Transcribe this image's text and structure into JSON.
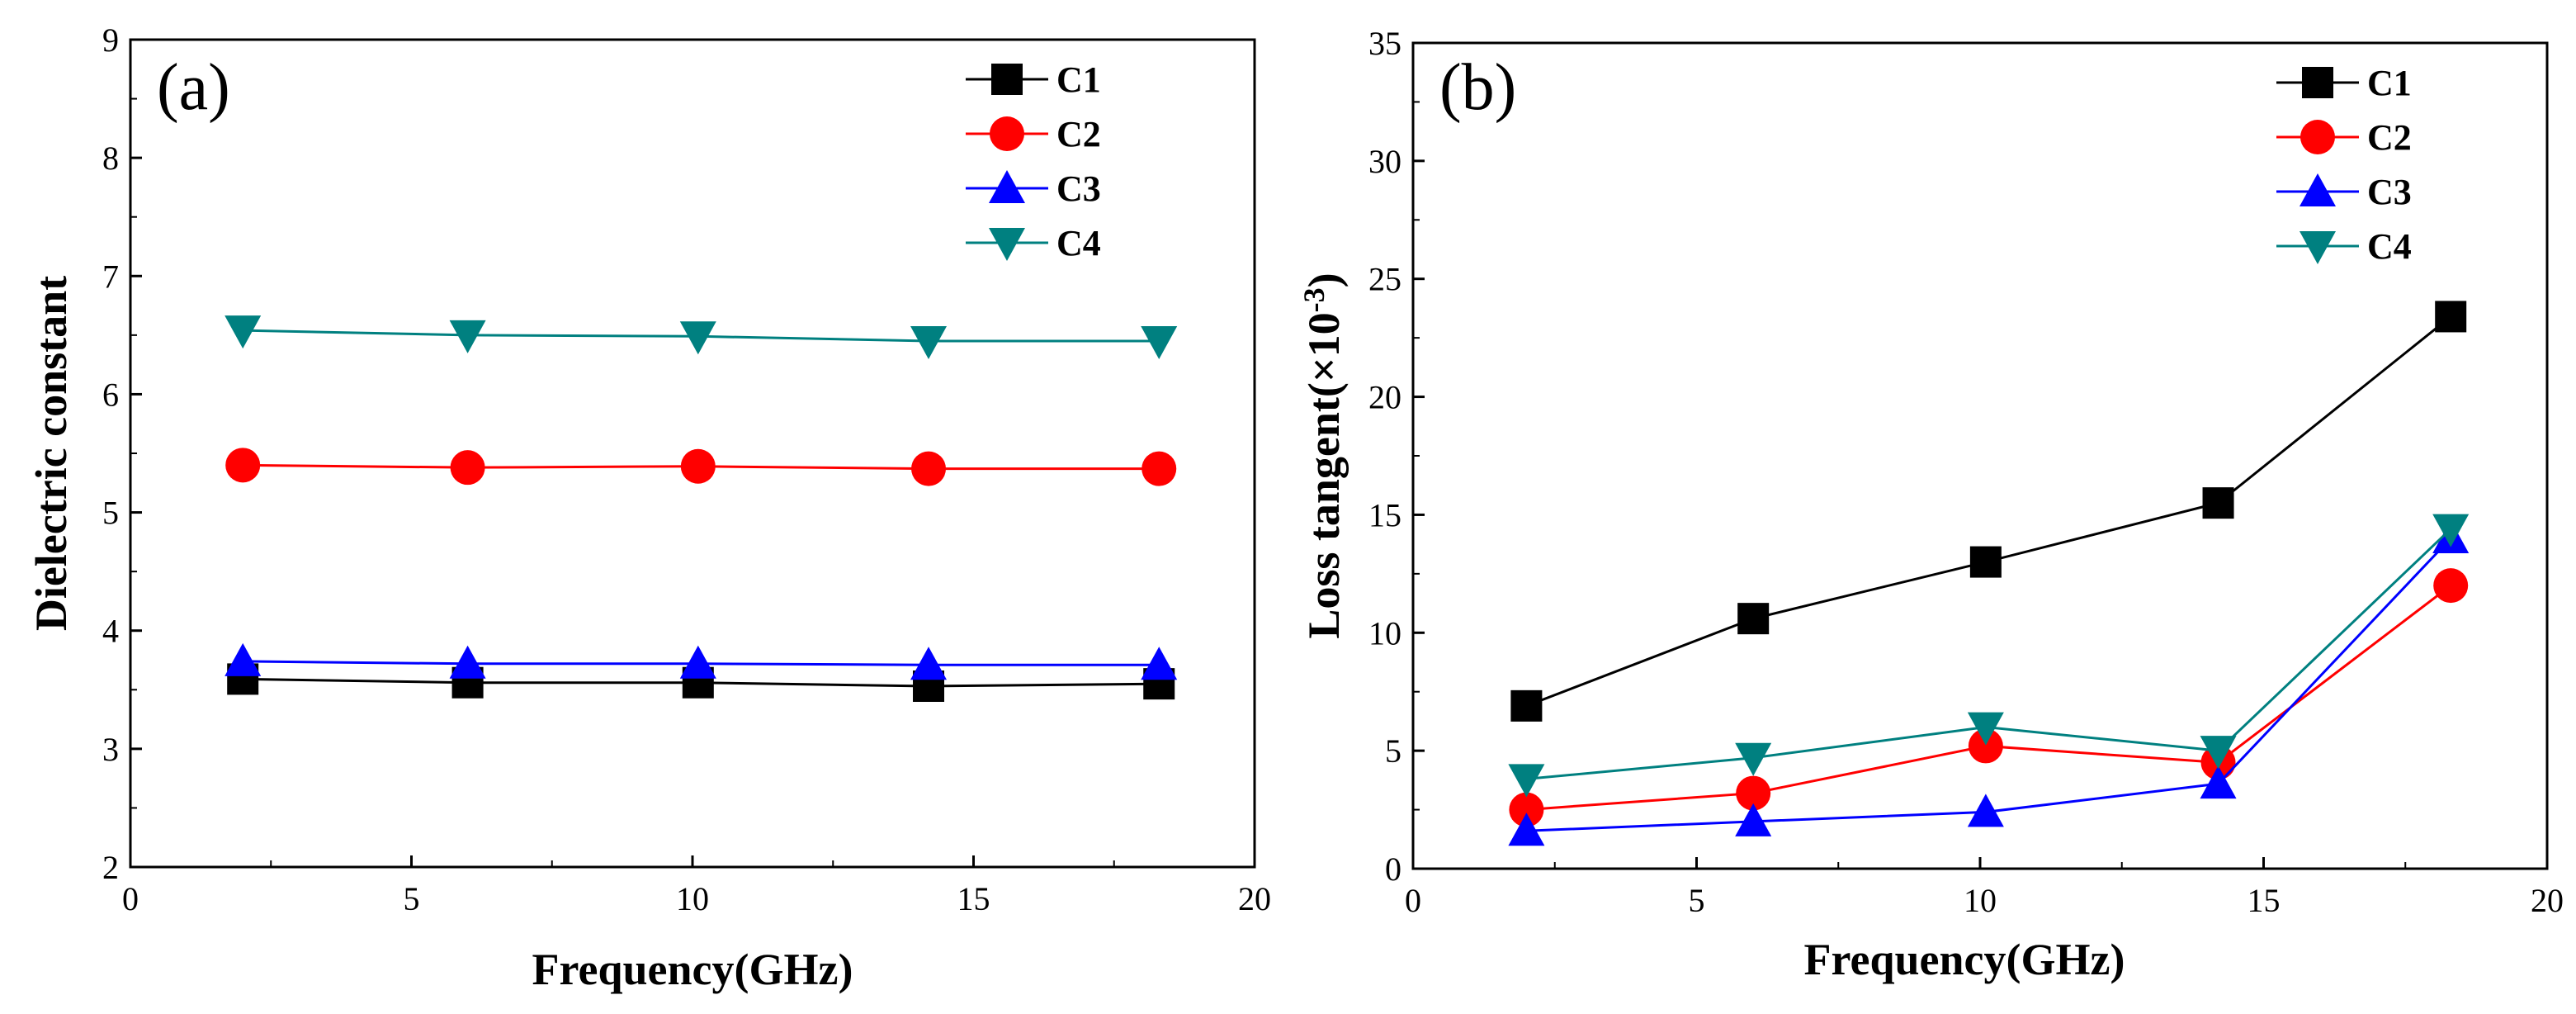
{
  "colors": {
    "C1": "#000000",
    "C2": "#ff0000",
    "C3": "#0000ff",
    "C4": "#008080"
  },
  "chart_data": [
    {
      "type": "line",
      "panel_label": "(a)",
      "xlabel": "Frequency(GHz)",
      "ylabel": "Dielectric constant",
      "xlim": [
        0,
        20
      ],
      "ylim": [
        2,
        9
      ],
      "xticks": [
        0,
        5,
        10,
        15,
        20
      ],
      "yticks": [
        2,
        3,
        4,
        5,
        6,
        7,
        8,
        9
      ],
      "grid": false,
      "legend_position": "top-right",
      "x": [
        2,
        6,
        10.1,
        14.2,
        18.3
      ],
      "series": [
        {
          "name": "C1",
          "marker": "square",
          "values": [
            3.59,
            3.56,
            3.56,
            3.53,
            3.55
          ]
        },
        {
          "name": "C2",
          "marker": "circle",
          "values": [
            5.4,
            5.38,
            5.39,
            5.37,
            5.37
          ]
        },
        {
          "name": "C3",
          "marker": "triangle-up",
          "values": [
            3.74,
            3.72,
            3.72,
            3.71,
            3.71
          ]
        },
        {
          "name": "C4",
          "marker": "triangle-down",
          "values": [
            6.54,
            6.5,
            6.49,
            6.45,
            6.45
          ]
        }
      ]
    },
    {
      "type": "line",
      "panel_label": "(b)",
      "xlabel": "Frequency(GHz)",
      "ylabel_main": "Loss tangent(×10",
      "ylabel_exp": "-3",
      "ylabel_close": ")",
      "xlim": [
        0,
        20
      ],
      "ylim": [
        0,
        35
      ],
      "xticks": [
        0,
        5,
        10,
        15,
        20
      ],
      "yticks": [
        0,
        5,
        10,
        15,
        20,
        25,
        30,
        35
      ],
      "grid": false,
      "legend_position": "top-right",
      "x": [
        2,
        6,
        10.1,
        14.2,
        18.3
      ],
      "series": [
        {
          "name": "C1",
          "marker": "square",
          "values": [
            6.9,
            10.6,
            13.0,
            15.5,
            23.4
          ]
        },
        {
          "name": "C2",
          "marker": "circle",
          "values": [
            2.5,
            3.2,
            5.2,
            4.5,
            12.0
          ]
        },
        {
          "name": "C3",
          "marker": "triangle-up",
          "values": [
            1.6,
            2.0,
            2.4,
            3.6,
            14.0
          ]
        },
        {
          "name": "C4",
          "marker": "triangle-down",
          "values": [
            3.8,
            4.7,
            6.0,
            5.0,
            14.4
          ]
        }
      ]
    }
  ]
}
